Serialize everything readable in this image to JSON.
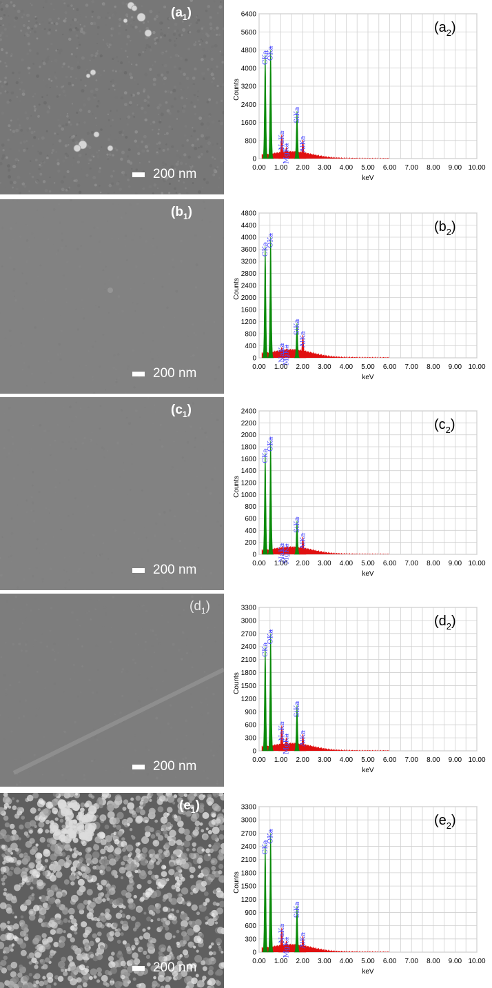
{
  "sem_panels": [
    {
      "id": "a",
      "label_letter": "a",
      "label_sub": "1",
      "scale_text": "200 nm",
      "texture": "fine",
      "particles": true
    },
    {
      "id": "b",
      "label_letter": "b",
      "label_sub": "1",
      "scale_text": "200 nm",
      "texture": "smooth"
    },
    {
      "id": "c",
      "label_letter": "c",
      "label_sub": "1",
      "scale_text": "200 nm",
      "texture": "smooth"
    },
    {
      "id": "d",
      "label_letter": "d",
      "label_sub": "1",
      "scale_text": "200 nm",
      "texture": "smooth"
    },
    {
      "id": "e",
      "label_letter": "e",
      "label_sub": "1",
      "scale_text": "200 nm",
      "texture": "grainy"
    }
  ],
  "chart_data": [
    {
      "type": "area",
      "panel_letter": "a",
      "panel_sub": "2",
      "xlabel": "keV",
      "ylabel": "Counts",
      "xlim": [
        0,
        10
      ],
      "ylim": [
        0,
        6400
      ],
      "xticks": [
        "0.00",
        "1.00",
        "2.00",
        "3.00",
        "4.00",
        "5.00",
        "6.00",
        "7.00",
        "8.00",
        "9.00",
        "10.00"
      ],
      "yticks": [
        "0",
        "800",
        "1600",
        "2400",
        "3200",
        "4000",
        "4800",
        "5600",
        "6400"
      ],
      "peaks": [
        {
          "element": "CKa",
          "x": 0.28,
          "y": 4600,
          "color": "#0a8a0a"
        },
        {
          "element": "OKa",
          "x": 0.53,
          "y": 4800,
          "color": "#0a8a0a"
        },
        {
          "element": "NaKa",
          "x": 1.04,
          "y": 1050,
          "color": "#e01010"
        },
        {
          "element": "MgKa",
          "x": 1.25,
          "y": 500,
          "color": "#e01010"
        },
        {
          "element": "SiKa",
          "x": 1.74,
          "y": 2100,
          "color": "#0a8a0a"
        },
        {
          "element": "AlKa",
          "x": 2.01,
          "y": 820,
          "color": "#e01010"
        }
      ],
      "background_level": 250
    },
    {
      "type": "area",
      "panel_letter": "b",
      "panel_sub": "2",
      "xlabel": "keV",
      "ylabel": "Counts",
      "xlim": [
        0,
        10
      ],
      "ylim": [
        0,
        4800
      ],
      "xticks": [
        "0.00",
        "1.00",
        "2.00",
        "3.00",
        "4.00",
        "5.00",
        "6.00",
        "7.00",
        "8.00",
        "9.00",
        "10.00"
      ],
      "yticks": [
        "0",
        "400",
        "800",
        "1200",
        "1600",
        "2000",
        "2400",
        "2800",
        "3200",
        "3600",
        "4000",
        "4400",
        "4800"
      ],
      "peaks": [
        {
          "element": "CKa",
          "x": 0.28,
          "y": 3700,
          "color": "#0a8a0a"
        },
        {
          "element": "OKa",
          "x": 0.53,
          "y": 4000,
          "color": "#0a8a0a"
        },
        {
          "element": "NaKa",
          "x": 1.04,
          "y": 350,
          "color": "#e01010"
        },
        {
          "element": "MgKa",
          "x": 1.25,
          "y": 300,
          "color": "#e01010"
        },
        {
          "element": "SiKa",
          "x": 1.74,
          "y": 1150,
          "color": "#0a8a0a"
        },
        {
          "element": "AlKa",
          "x": 2.01,
          "y": 750,
          "color": "#e01010"
        }
      ],
      "background_level": 220
    },
    {
      "type": "area",
      "panel_letter": "c",
      "panel_sub": "2",
      "xlabel": "keV",
      "ylabel": "Counts",
      "xlim": [
        0,
        10
      ],
      "ylim": [
        0,
        2400
      ],
      "xticks": [
        "0.00",
        "1.00",
        "2.00",
        "3.00",
        "4.00",
        "5.00",
        "6.00",
        "7.00",
        "8.00",
        "9.00",
        "10.00"
      ],
      "yticks": [
        "0",
        "200",
        "400",
        "600",
        "800",
        "1000",
        "1200",
        "1400",
        "1600",
        "1800",
        "2000",
        "2200",
        "2400"
      ],
      "peaks": [
        {
          "element": "CKa",
          "x": 0.28,
          "y": 1700,
          "color": "#0a8a0a"
        },
        {
          "element": "OKa",
          "x": 0.53,
          "y": 1900,
          "color": "#0a8a0a"
        },
        {
          "element": "NaKa",
          "x": 1.04,
          "y": 120,
          "color": "#e01010"
        },
        {
          "element": "MgKa",
          "x": 1.25,
          "y": 110,
          "color": "#e01010"
        },
        {
          "element": "SiKa",
          "x": 1.74,
          "y": 560,
          "color": "#0a8a0a"
        },
        {
          "element": "AlKa",
          "x": 2.01,
          "y": 290,
          "color": "#e01010"
        }
      ],
      "background_level": 100
    },
    {
      "type": "area",
      "panel_letter": "d",
      "panel_sub": "2",
      "xlabel": "keV",
      "ylabel": "Counts",
      "xlim": [
        0,
        10
      ],
      "ylim": [
        0,
        3300
      ],
      "xticks": [
        "0.00",
        "1.00",
        "2.00",
        "3.00",
        "4.00",
        "5.00",
        "6.00",
        "7.00",
        "8.00",
        "9.00",
        "10.00"
      ],
      "yticks": [
        "0",
        "300",
        "600",
        "900",
        "1200",
        "1500",
        "1800",
        "2100",
        "2400",
        "2700",
        "3000",
        "3300"
      ],
      "peaks": [
        {
          "element": "CKa",
          "x": 0.28,
          "y": 2400,
          "color": "#0a8a0a"
        },
        {
          "element": "OKa",
          "x": 0.53,
          "y": 2700,
          "color": "#0a8a0a"
        },
        {
          "element": "NaKa",
          "x": 1.04,
          "y": 580,
          "color": "#e01010"
        },
        {
          "element": "MgKa",
          "x": 1.25,
          "y": 300,
          "color": "#e01010"
        },
        {
          "element": "SiKa",
          "x": 1.74,
          "y": 1050,
          "color": "#0a8a0a"
        },
        {
          "element": "AlKa",
          "x": 2.01,
          "y": 380,
          "color": "#e01010"
        }
      ],
      "background_level": 140
    },
    {
      "type": "area",
      "panel_letter": "e",
      "panel_sub": "2",
      "xlabel": "keV",
      "ylabel": "Counts",
      "xlim": [
        0,
        10
      ],
      "ylim": [
        0,
        3300
      ],
      "xticks": [
        "0.00",
        "1.00",
        "2.00",
        "3.00",
        "4.00",
        "5.00",
        "6.00",
        "7.00",
        "8.00",
        "9.00",
        "10.00"
      ],
      "yticks": [
        "0",
        "300",
        "600",
        "900",
        "1200",
        "1500",
        "1800",
        "2100",
        "2400",
        "2700",
        "3000",
        "3300"
      ],
      "peaks": [
        {
          "element": "CKa",
          "x": 0.28,
          "y": 2450,
          "color": "#0a8a0a"
        },
        {
          "element": "OKa",
          "x": 0.53,
          "y": 2700,
          "color": "#0a8a0a"
        },
        {
          "element": "NaKa",
          "x": 1.04,
          "y": 550,
          "color": "#e01010"
        },
        {
          "element": "MgKa",
          "x": 1.25,
          "y": 250,
          "color": "#e01010"
        },
        {
          "element": "SiKa",
          "x": 1.74,
          "y": 1050,
          "color": "#0a8a0a"
        },
        {
          "element": "AlKa",
          "x": 2.01,
          "y": 360,
          "color": "#e01010"
        }
      ],
      "background_level": 140
    }
  ]
}
